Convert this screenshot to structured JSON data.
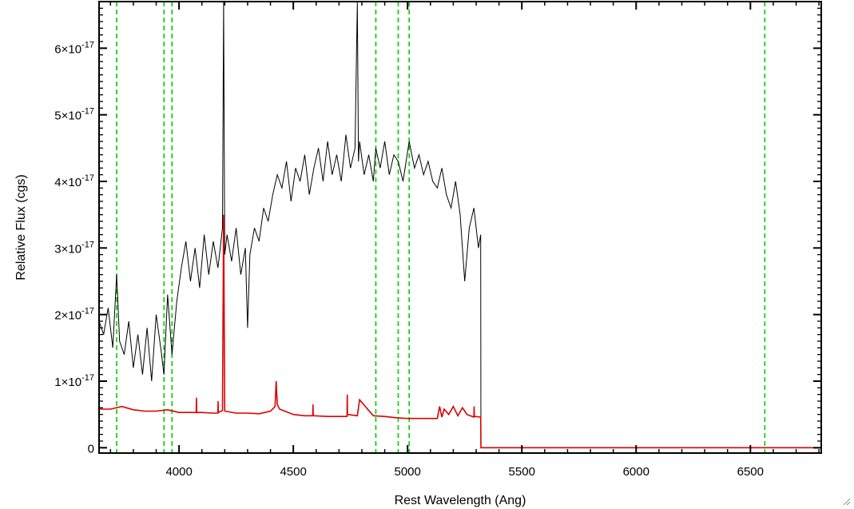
{
  "chart_data": {
    "type": "line",
    "title": "",
    "xlabel": "Rest Wavelength (Ang)",
    "ylabel": "Relative Flux (cgs)",
    "xlim": [
      3650,
      6810
    ],
    "ylim": [
      -8e-19,
      6.7e-17
    ],
    "x_ticks": [
      {
        "value": 4000,
        "label": "4000"
      },
      {
        "value": 4500,
        "label": "4500"
      },
      {
        "value": 5000,
        "label": "5000"
      },
      {
        "value": 5500,
        "label": "5500"
      },
      {
        "value": 6000,
        "label": "6000"
      },
      {
        "value": 6500,
        "label": "6500"
      }
    ],
    "y_ticks": [
      {
        "value": 0,
        "mantissa": "0",
        "exponent": ""
      },
      {
        "value": 1e-17,
        "mantissa": "1×10",
        "exponent": "-17"
      },
      {
        "value": 2e-17,
        "mantissa": "2×10",
        "exponent": "-17"
      },
      {
        "value": 3e-17,
        "mantissa": "3×10",
        "exponent": "-17"
      },
      {
        "value": 4e-17,
        "mantissa": "4×10",
        "exponent": "-17"
      },
      {
        "value": 5e-17,
        "mantissa": "5×10",
        "exponent": "-17"
      },
      {
        "value": 6e-17,
        "mantissa": "6×10",
        "exponent": "-17"
      }
    ],
    "grid": false,
    "vertical_lines": {
      "style": "dashed",
      "color": "#00cc00",
      "x": [
        3727,
        3934,
        3969,
        4861,
        4959,
        5007,
        6563
      ]
    },
    "series": [
      {
        "color": "#000000",
        "x": [
          3650,
          3670,
          3690,
          3710,
          3727,
          3740,
          3760,
          3780,
          3800,
          3820,
          3840,
          3860,
          3880,
          3900,
          3920,
          3934,
          3950,
          3969,
          3990,
          4010,
          4030,
          4050,
          4070,
          4090,
          4110,
          4130,
          4150,
          4170,
          4190,
          4195,
          4200,
          4210,
          4230,
          4250,
          4270,
          4290,
          4300,
          4310,
          4330,
          4350,
          4370,
          4390,
          4410,
          4430,
          4450,
          4470,
          4490,
          4510,
          4530,
          4550,
          4570,
          4590,
          4610,
          4630,
          4650,
          4670,
          4690,
          4710,
          4730,
          4750,
          4770,
          4780,
          4785,
          4790,
          4810,
          4830,
          4850,
          4861,
          4880,
          4900,
          4920,
          4940,
          4959,
          4980,
          5007,
          5030,
          5050,
          5070,
          5090,
          5110,
          5130,
          5150,
          5170,
          5190,
          5210,
          5230,
          5250,
          5270,
          5290,
          5310,
          5320,
          5321,
          5400,
          5600,
          5800,
          6000,
          6200,
          6400,
          6600,
          6810
        ],
        "y": [
          1.9e-17,
          1.7e-17,
          2.1e-17,
          1.5e-17,
          2.6e-17,
          1.6e-17,
          1.4e-17,
          1.9e-17,
          1.2e-17,
          1.7e-17,
          1.1e-17,
          1.8e-17,
          1e-17,
          2e-17,
          1.5e-17,
          1.1e-17,
          2.3e-17,
          1.4e-17,
          2.2e-17,
          2.7e-17,
          3.1e-17,
          2.5e-17,
          3e-17,
          2.4e-17,
          3.2e-17,
          2.6e-17,
          3.1e-17,
          2.7e-17,
          3.3e-17,
          6.7e-17,
          2.9e-17,
          3.2e-17,
          2.8e-17,
          3.3e-17,
          2.6e-17,
          3e-17,
          1.8e-17,
          2.9e-17,
          3.3e-17,
          3.1e-17,
          3.6e-17,
          3.4e-17,
          3.8e-17,
          4.1e-17,
          3.9e-17,
          4.3e-17,
          3.7e-17,
          4.2e-17,
          4e-17,
          4.4e-17,
          3.8e-17,
          4.2e-17,
          4.5e-17,
          4e-17,
          4.6e-17,
          4.1e-17,
          4.4e-17,
          4e-17,
          4.7e-17,
          4.2e-17,
          4.5e-17,
          6.7e-17,
          4.3e-17,
          4.6e-17,
          4.1e-17,
          4.4e-17,
          4e-17,
          4.5e-17,
          4.2e-17,
          4.6e-17,
          4.1e-17,
          4.4e-17,
          4.3e-17,
          4e-17,
          4.6e-17,
          4.2e-17,
          4.4e-17,
          4.1e-17,
          4.3e-17,
          4e-17,
          3.9e-17,
          4.2e-17,
          3.8e-17,
          3.6e-17,
          4e-17,
          3.5e-17,
          2.5e-17,
          3.3e-17,
          3.6e-17,
          3e-17,
          3.2e-17,
          0,
          0,
          0,
          0,
          0,
          0,
          0,
          0,
          0
        ]
      },
      {
        "color": "#dd0000",
        "x": [
          3650,
          3700,
          3750,
          3800,
          3850,
          3900,
          3950,
          4000,
          4050,
          4075,
          4076,
          4077,
          4100,
          4150,
          4170,
          4171,
          4172,
          4190,
          4195,
          4200,
          4250,
          4300,
          4350,
          4400,
          4420,
          4425,
          4430,
          4440,
          4500,
          4550,
          4585,
          4586,
          4587,
          4650,
          4700,
          4735,
          4736,
          4737,
          4780,
          4790,
          4850,
          4900,
          4950,
          5000,
          5050,
          5100,
          5130,
          5140,
          5150,
          5160,
          5180,
          5200,
          5220,
          5240,
          5260,
          5290,
          5291,
          5292,
          5320,
          5321,
          5400,
          5600,
          5800,
          6000,
          6200,
          6400,
          6600,
          6810
        ],
        "y": [
          5.8e-18,
          5.8e-18,
          6.2e-18,
          5.7e-18,
          5.5e-18,
          5.5e-18,
          5.7e-18,
          5.3e-18,
          5.3e-18,
          5.3e-18,
          7.5e-18,
          5.3e-18,
          5.3e-18,
          5.2e-18,
          5.2e-18,
          7e-18,
          5.3e-18,
          5.6e-18,
          3.5e-17,
          5.5e-18,
          5.2e-18,
          5.2e-18,
          5.1e-18,
          5.5e-18,
          6.2e-18,
          1e-17,
          6.5e-18,
          5.8e-18,
          5e-18,
          4.8e-18,
          4.8e-18,
          6.5e-18,
          4.8e-18,
          4.7e-18,
          4.7e-18,
          4.7e-18,
          8e-18,
          5e-18,
          4.8e-18,
          7.2e-18,
          4.8e-18,
          4.7e-18,
          4.5e-18,
          4.4e-18,
          4.4e-18,
          4.4e-18,
          4.4e-18,
          6.2e-18,
          4.6e-18,
          5.8e-18,
          5e-18,
          6.2e-18,
          4.8e-18,
          6e-18,
          5e-18,
          4.6e-18,
          6.2e-18,
          4.7e-18,
          4.6e-18,
          0,
          0,
          0,
          0,
          0,
          0,
          0,
          0,
          0
        ]
      }
    ]
  }
}
